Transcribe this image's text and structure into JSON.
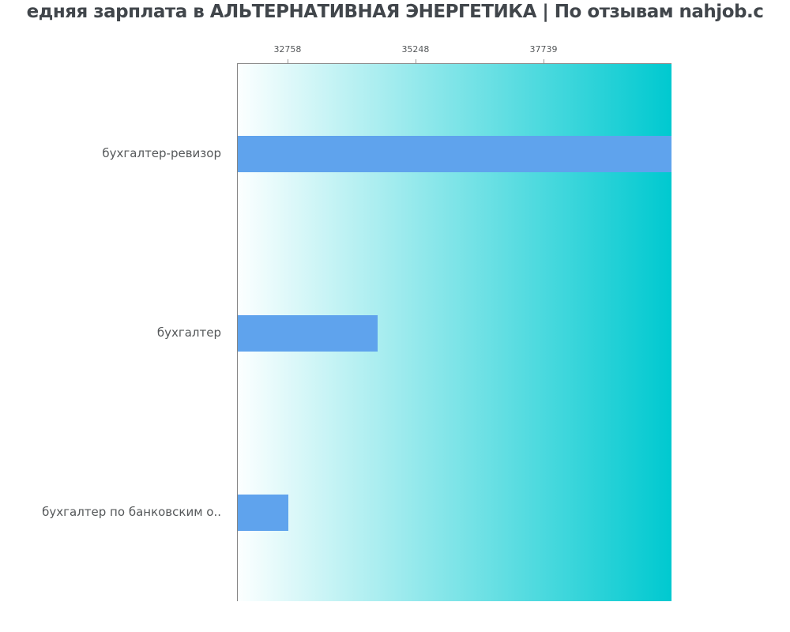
{
  "page": {
    "title": "едняя зарплата в АЛЬТЕРНАТИВНАЯ ЭНЕРГЕТИКА | По отзывам nahjob.c"
  },
  "chart_data": {
    "type": "bar",
    "orientation": "horizontal",
    "title": "едняя зарплата в АЛЬТЕРНАТИВНАЯ ЭНЕРГЕТИКА | По отзывам nahjob.c",
    "categories": [
      "бухгалтер-ревизор",
      "бухгалтер",
      "бухгалтер по банковским о.."
    ],
    "values": [
      40229,
      34500,
      32758
    ],
    "xticks": [
      32758,
      35248,
      37739
    ],
    "xlim": [
      31775,
      40229
    ],
    "xlabel": "",
    "ylabel": "",
    "grid": false,
    "legend_position": "none",
    "colors": {
      "bar": "#5fa3ed",
      "plot_bg_gradient_start": "#fcffff",
      "plot_bg_gradient_end": "#00c9d0",
      "axis_line": "#858585",
      "tick_mark": "#999999",
      "tick_label": "#55585a",
      "category_label": "#55585a",
      "title": "#41464b"
    }
  }
}
